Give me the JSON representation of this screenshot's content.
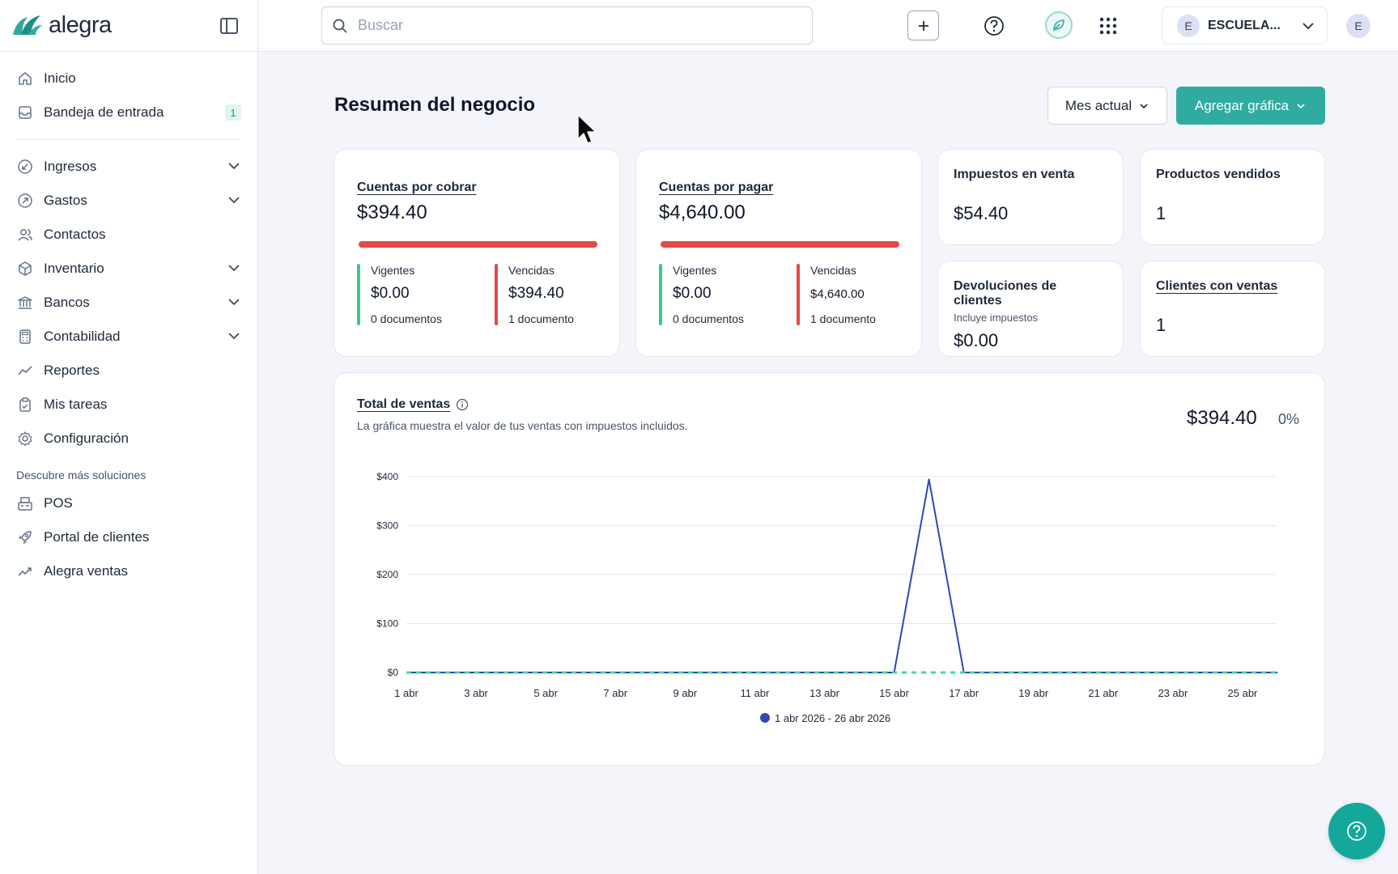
{
  "brand": {
    "name": "alegra",
    "accent": "#30aba0"
  },
  "sidebar": {
    "items": [
      {
        "label": "Inicio",
        "icon": "home-icon"
      },
      {
        "label": "Bandeja de entrada",
        "icon": "inbox-icon",
        "badge": "1"
      }
    ],
    "modules": [
      {
        "label": "Ingresos",
        "icon": "income-icon",
        "expandable": true
      },
      {
        "label": "Gastos",
        "icon": "expense-icon",
        "expandable": true
      },
      {
        "label": "Contactos",
        "icon": "contacts-icon",
        "expandable": false
      },
      {
        "label": "Inventario",
        "icon": "box-icon",
        "expandable": true
      },
      {
        "label": "Bancos",
        "icon": "bank-icon",
        "expandable": true
      },
      {
        "label": "Contabilidad",
        "icon": "calculator-icon",
        "expandable": true
      },
      {
        "label": "Reportes",
        "icon": "chart-line-icon",
        "expandable": false
      },
      {
        "label": "Mis tareas",
        "icon": "clipboard-icon",
        "expandable": false
      },
      {
        "label": "Configuración",
        "icon": "gear-icon",
        "expandable": false
      }
    ],
    "section_title": "Descubre más soluciones",
    "solutions": [
      {
        "label": "POS",
        "icon": "register-icon"
      },
      {
        "label": "Portal de clientes",
        "icon": "rocket-icon"
      },
      {
        "label": "Alegra ventas",
        "icon": "trend-icon"
      }
    ]
  },
  "topbar": {
    "search_placeholder": "Buscar",
    "company": {
      "initial": "E",
      "name": "ESCUELA..."
    },
    "user_initial": "E"
  },
  "main": {
    "title": "Resumen del negocio",
    "period_button": "Mes actual",
    "add_chart_button": "Agregar gráfica",
    "receivables": {
      "title": "Cuentas por cobrar",
      "amount": "$394.40",
      "current": {
        "label": "Vigentes",
        "amount": "$0.00",
        "docs": "0 documentos"
      },
      "overdue": {
        "label": "Vencidas",
        "amount": "$394.40",
        "docs": "1 documento"
      }
    },
    "payables": {
      "title": "Cuentas por pagar",
      "amount": "$4,640.00",
      "current": {
        "label": "Vigentes",
        "amount": "$0.00",
        "docs": "0 documentos"
      },
      "overdue": {
        "label": "Vencidas",
        "amount": "$4,640.00",
        "docs": "1 documento"
      }
    },
    "sales_taxes": {
      "title": "Impuestos en venta",
      "value": "$54.40"
    },
    "products_sold": {
      "title": "Productos vendidos",
      "value": "1"
    },
    "customer_returns": {
      "title": "Devoluciones de clientes",
      "note": "Incluye impuestos",
      "value": "$0.00"
    },
    "customers_with_sales": {
      "title": "Clientes con ventas",
      "value": "1"
    },
    "sales_chart": {
      "title": "Total de ventas",
      "description": "La gráfica muestra el valor de tus ventas con impuestos incluidos.",
      "total": "$394.40",
      "change": "0%"
    }
  },
  "chart_data": {
    "type": "line",
    "title": "Total de ventas",
    "y_ticks": [
      "$400",
      "$300",
      "$200",
      "$100",
      "$0"
    ],
    "ylim": [
      0,
      400
    ],
    "x_tick_labels": [
      "1 abr",
      "3 abr",
      "5 abr",
      "7 abr",
      "9 abr",
      "11 abr",
      "13 abr",
      "15 abr",
      "17 abr",
      "19 abr",
      "21 abr",
      "23 abr",
      "25 abr"
    ],
    "x": [
      1,
      2,
      3,
      4,
      5,
      6,
      7,
      8,
      9,
      10,
      11,
      12,
      13,
      14,
      15,
      16,
      17,
      18,
      19,
      20,
      21,
      22,
      23,
      24,
      25,
      26
    ],
    "series": [
      {
        "name": "1 abr 2026 - 26 abr 2026",
        "color": "#2f47b8",
        "values": [
          0,
          0,
          0,
          0,
          0,
          0,
          0,
          0,
          0,
          0,
          0,
          0,
          0,
          0,
          0,
          394.4,
          0,
          0,
          0,
          0,
          0,
          0,
          0,
          0,
          0,
          0
        ]
      },
      {
        "color": "#3ddc97",
        "style": "dashed",
        "values": [
          0,
          0,
          0,
          0,
          0,
          0,
          0,
          0,
          0,
          0,
          0,
          0,
          0,
          0,
          0,
          0,
          0,
          0,
          0,
          0,
          0,
          0,
          0,
          0,
          0,
          0
        ]
      }
    ],
    "grid": true,
    "legend": "bottom-center"
  }
}
